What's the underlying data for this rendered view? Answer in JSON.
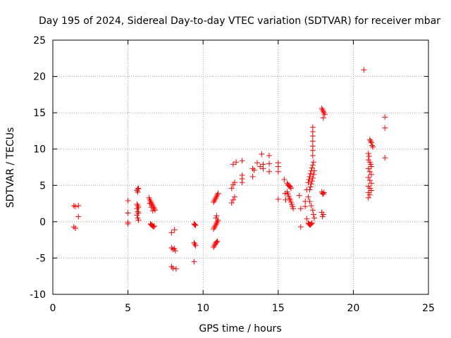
{
  "chart_data": {
    "type": "scatter",
    "title": "Day 195 of 2024, Sidereal Day-to-day VTEC variation (SDTVAR) for receiver mbar",
    "xlabel": "GPS time / hours",
    "ylabel": "SDTVAR / TECUs",
    "xlim": [
      0,
      25
    ],
    "ylim": [
      -10,
      25
    ],
    "x_ticks": [
      0,
      5,
      10,
      15,
      20,
      25
    ],
    "y_ticks": [
      -10,
      -5,
      0,
      5,
      10,
      15,
      20,
      25
    ],
    "x_tick_labels": [
      "0",
      "5",
      "10",
      "15",
      "20",
      "25"
    ],
    "y_tick_labels": [
      "-10",
      "-5",
      "0",
      "5",
      "10",
      "15",
      "20",
      "25"
    ],
    "grid": true,
    "legend": "none",
    "marker": "+",
    "marker_color": "#ff0000",
    "series": [
      {
        "points": [
          [
            1.4,
            2.2
          ],
          [
            1.5,
            2.1
          ],
          [
            1.7,
            2.2
          ],
          [
            1.4,
            -0.7
          ],
          [
            1.5,
            -0.9
          ],
          [
            1.7,
            0.7
          ],
          [
            5.0,
            2.9
          ],
          [
            5.0,
            1.2
          ],
          [
            5.0,
            -0.1
          ],
          [
            5.0,
            -0.3
          ],
          [
            5.6,
            4.3
          ],
          [
            5.65,
            4.5
          ],
          [
            5.7,
            4.6
          ],
          [
            5.65,
            4.1
          ],
          [
            5.6,
            2.4
          ],
          [
            5.65,
            2.2
          ],
          [
            5.7,
            2.0
          ],
          [
            5.6,
            1.8
          ],
          [
            5.65,
            1.4
          ],
          [
            5.7,
            1.2
          ],
          [
            5.6,
            0.9
          ],
          [
            5.65,
            0.5
          ],
          [
            5.7,
            0.2
          ],
          [
            6.4,
            3.3
          ],
          [
            6.45,
            3.0
          ],
          [
            6.5,
            2.8
          ],
          [
            6.55,
            2.6
          ],
          [
            6.6,
            2.4
          ],
          [
            6.65,
            2.2
          ],
          [
            6.7,
            2.0
          ],
          [
            6.75,
            1.8
          ],
          [
            6.8,
            1.6
          ],
          [
            6.45,
            2.5
          ],
          [
            6.55,
            2.0
          ],
          [
            6.65,
            1.5
          ],
          [
            6.5,
            -0.3
          ],
          [
            6.55,
            -0.4
          ],
          [
            6.6,
            -0.5
          ],
          [
            6.65,
            -0.6
          ],
          [
            6.7,
            -0.7
          ],
          [
            6.75,
            -0.6
          ],
          [
            7.9,
            -1.5
          ],
          [
            8.1,
            -1.1
          ],
          [
            7.9,
            -3.6
          ],
          [
            8.0,
            -3.8
          ],
          [
            8.1,
            -3.7
          ],
          [
            8.15,
            -4.0
          ],
          [
            7.9,
            -6.2
          ],
          [
            8.0,
            -6.4
          ],
          [
            8.2,
            -6.5
          ],
          [
            9.4,
            -0.3
          ],
          [
            9.45,
            -0.4
          ],
          [
            9.5,
            -0.5
          ],
          [
            9.4,
            -2.9
          ],
          [
            9.45,
            -3.1
          ],
          [
            9.5,
            -3.3
          ],
          [
            9.4,
            -5.5
          ],
          [
            10.7,
            2.7
          ],
          [
            10.75,
            2.9
          ],
          [
            10.8,
            3.1
          ],
          [
            10.85,
            3.3
          ],
          [
            10.9,
            3.5
          ],
          [
            10.95,
            3.7
          ],
          [
            11.0,
            3.9
          ],
          [
            10.7,
            -1.0
          ],
          [
            10.75,
            -0.8
          ],
          [
            10.8,
            -0.6
          ],
          [
            10.85,
            -0.4
          ],
          [
            10.9,
            -0.2
          ],
          [
            10.95,
            0.0
          ],
          [
            11.0,
            0.2
          ],
          [
            10.85,
            0.5
          ],
          [
            10.9,
            0.8
          ],
          [
            10.7,
            -3.5
          ],
          [
            10.75,
            -3.3
          ],
          [
            10.8,
            -3.1
          ],
          [
            10.85,
            -2.9
          ],
          [
            10.9,
            -2.8
          ],
          [
            10.95,
            -2.7
          ],
          [
            11.9,
            4.6
          ],
          [
            12.0,
            5.1
          ],
          [
            12.1,
            5.4
          ],
          [
            12.0,
            3.0
          ],
          [
            12.1,
            3.4
          ],
          [
            11.9,
            2.6
          ],
          [
            12.0,
            7.9
          ],
          [
            12.2,
            8.2
          ],
          [
            12.6,
            8.4
          ],
          [
            12.6,
            6.4
          ],
          [
            12.6,
            5.9
          ],
          [
            12.6,
            5.4
          ],
          [
            13.3,
            7.3
          ],
          [
            13.4,
            7.1
          ],
          [
            13.3,
            6.2
          ],
          [
            13.6,
            8.1
          ],
          [
            13.8,
            7.6
          ],
          [
            13.9,
            9.3
          ],
          [
            14.0,
            7.9
          ],
          [
            14.0,
            7.3
          ],
          [
            14.4,
            9.1
          ],
          [
            14.4,
            8.0
          ],
          [
            14.4,
            6.9
          ],
          [
            15.0,
            8.1
          ],
          [
            15.0,
            7.6
          ],
          [
            15.0,
            6.9
          ],
          [
            15.0,
            3.1
          ],
          [
            15.4,
            5.8
          ],
          [
            15.45,
            3.9
          ],
          [
            15.5,
            3.0
          ],
          [
            15.6,
            5.3
          ],
          [
            15.65,
            5.1
          ],
          [
            15.7,
            5.0
          ],
          [
            15.75,
            4.9
          ],
          [
            15.8,
            4.8
          ],
          [
            15.85,
            4.6
          ],
          [
            15.6,
            4.1
          ],
          [
            15.65,
            3.8
          ],
          [
            15.7,
            3.5
          ],
          [
            15.75,
            3.2
          ],
          [
            15.8,
            3.0
          ],
          [
            15.85,
            2.7
          ],
          [
            15.9,
            2.4
          ],
          [
            15.95,
            2.1
          ],
          [
            16.0,
            1.8
          ],
          [
            16.4,
            3.6
          ],
          [
            16.5,
            -0.7
          ],
          [
            16.5,
            1.8
          ],
          [
            16.8,
            2.1
          ],
          [
            16.8,
            2.8
          ],
          [
            16.9,
            4.4
          ],
          [
            16.9,
            0.4
          ],
          [
            17.0,
            -0.2
          ],
          [
            17.05,
            -0.3
          ],
          [
            17.1,
            -0.4
          ],
          [
            17.15,
            -0.4
          ],
          [
            17.2,
            -0.3
          ],
          [
            17.25,
            -0.2
          ],
          [
            17.0,
            5.4
          ],
          [
            17.05,
            5.8
          ],
          [
            17.1,
            6.2
          ],
          [
            17.15,
            6.6
          ],
          [
            17.2,
            7.0
          ],
          [
            17.25,
            7.4
          ],
          [
            17.3,
            7.8
          ],
          [
            17.35,
            8.2
          ],
          [
            17.1,
            4.4
          ],
          [
            17.15,
            4.8
          ],
          [
            17.2,
            5.2
          ],
          [
            17.25,
            5.6
          ],
          [
            17.3,
            6.0
          ],
          [
            17.35,
            6.5
          ],
          [
            17.4,
            7.0
          ],
          [
            17.3,
            13.0
          ],
          [
            17.3,
            12.4
          ],
          [
            17.3,
            11.8
          ],
          [
            17.3,
            11.1
          ],
          [
            17.3,
            10.4
          ],
          [
            17.3,
            9.8
          ],
          [
            17.3,
            9.1
          ],
          [
            17.0,
            3.4
          ],
          [
            17.1,
            2.8
          ],
          [
            17.2,
            2.2
          ],
          [
            17.3,
            1.6
          ],
          [
            17.35,
            1.0
          ],
          [
            17.4,
            0.5
          ],
          [
            17.9,
            15.6
          ],
          [
            17.95,
            15.4
          ],
          [
            18.0,
            15.2
          ],
          [
            18.05,
            15.0
          ],
          [
            18.1,
            14.8
          ],
          [
            18.0,
            14.3
          ],
          [
            17.9,
            4.1
          ],
          [
            17.95,
            3.9
          ],
          [
            18.0,
            3.8
          ],
          [
            18.05,
            4.0
          ],
          [
            17.9,
            1.3
          ],
          [
            18.0,
            1.0
          ],
          [
            17.95,
            0.7
          ],
          [
            20.7,
            20.9
          ],
          [
            21.0,
            9.4
          ],
          [
            21.05,
            9.0
          ],
          [
            21.0,
            8.5
          ],
          [
            21.1,
            8.2
          ],
          [
            21.15,
            7.9
          ],
          [
            21.2,
            7.6
          ],
          [
            21.0,
            7.3
          ],
          [
            21.1,
            6.9
          ],
          [
            21.2,
            6.5
          ],
          [
            21.0,
            6.1
          ],
          [
            21.1,
            5.7
          ],
          [
            21.2,
            5.3
          ],
          [
            21.0,
            4.9
          ],
          [
            21.1,
            4.6
          ],
          [
            21.2,
            4.3
          ],
          [
            21.0,
            4.0
          ],
          [
            21.1,
            3.7
          ],
          [
            21.0,
            3.3
          ],
          [
            21.1,
            11.3
          ],
          [
            21.15,
            11.1
          ],
          [
            21.2,
            10.9
          ],
          [
            21.25,
            10.5
          ],
          [
            21.3,
            10.3
          ],
          [
            22.1,
            14.4
          ],
          [
            22.1,
            12.9
          ],
          [
            22.1,
            8.8
          ]
        ]
      }
    ]
  }
}
